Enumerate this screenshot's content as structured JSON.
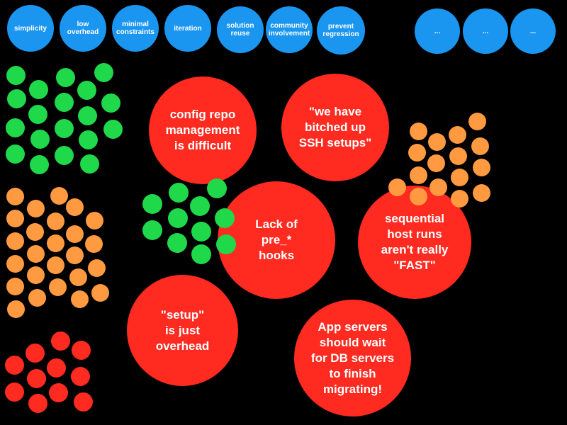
{
  "values": [
    "simplicity",
    "low\noverhead",
    "minimal\nconstraints",
    "iteration",
    "solution\nreuse",
    "community\ninvolvement",
    "prevent\nregression",
    "...",
    "...",
    "..."
  ],
  "problems": [
    "config repo\nmanagement\nis difficult",
    "\"we have\nbitched up\nSSH setups\"",
    "Lack of\npre_*\nhooks",
    "sequential\nhost runs\naren't really\n\"FAST\"",
    "\"setup\"\nis just\noverhead",
    "App servers\nshould wait\nfor DB servers\nto finish\nmigrating!"
  ],
  "colors": {
    "background": "#000000",
    "value": "#1a96f0",
    "problem": "#ff2a20",
    "green": "#1fd94a",
    "orange": "#ff9a40"
  }
}
